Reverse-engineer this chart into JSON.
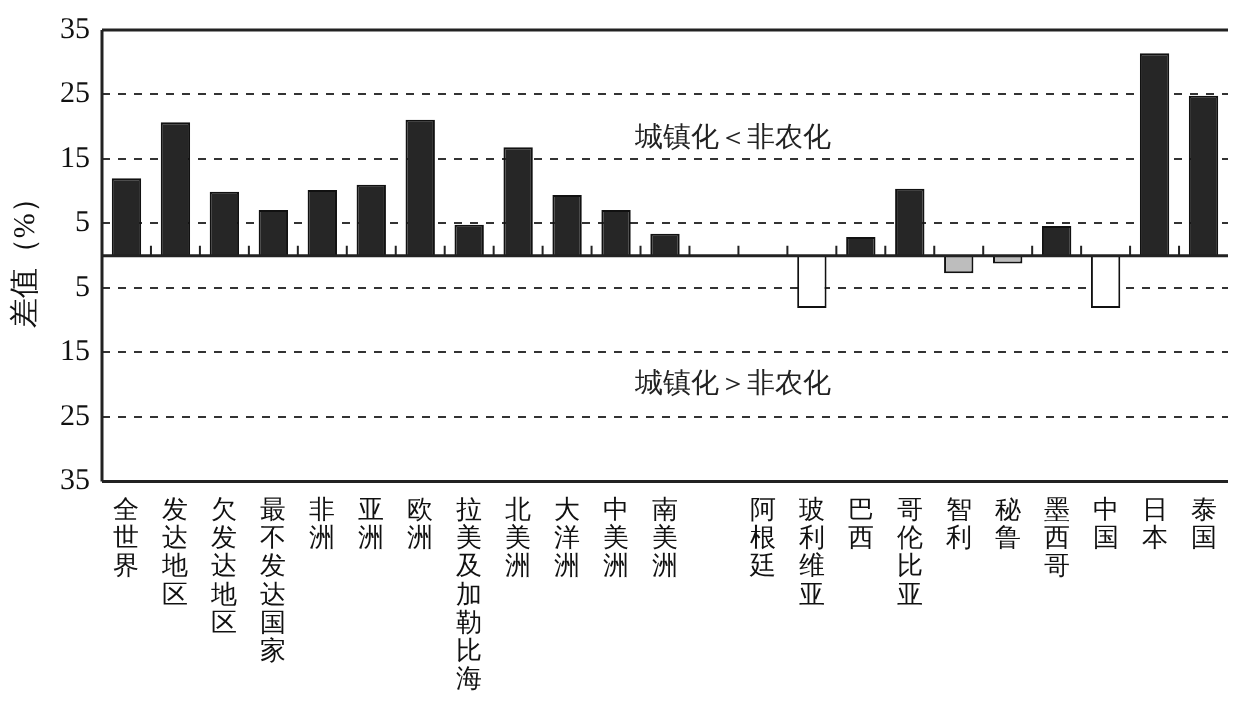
{
  "chart_data": {
    "type": "bar",
    "ylabel": "差值（%）",
    "categories": [
      "全世界",
      "发达地区",
      "欠发达地区",
      "最不发达国家",
      "非洲",
      "亚洲",
      "欧洲",
      "拉美及加勒比海",
      "北美洲",
      "大洋洲",
      "中美洲",
      "南美洲",
      null,
      "阿根廷",
      "玻利维亚",
      "巴西",
      "哥伦比亚",
      "智利",
      "秘鲁",
      "墨西哥",
      "中国",
      "日本",
      "泰国"
    ],
    "values": [
      12,
      20.7,
      9.9,
      7.1,
      10.2,
      11,
      21.1,
      4.8,
      16.8,
      9.4,
      7.1,
      3.4,
      null,
      0,
      -8.1,
      2.9,
      10.4,
      -2.7,
      -1.2,
      4.6,
      -8.1,
      31.4,
      24.8
    ],
    "colors": [
      "#262626",
      "#262626",
      "#262626",
      "#262626",
      "#262626",
      "#262626",
      "#262626",
      "#262626",
      "#262626",
      "#262626",
      "#262626",
      "#262626",
      "#262626",
      "#262626",
      "#ffffff",
      "#262626",
      "#262626",
      "#bdbdbd",
      "#bdbdbd",
      "#262626",
      "#ffffff",
      "#262626",
      "#262626"
    ],
    "ylim": [
      -35,
      35
    ],
    "yticks": [
      35,
      25,
      15,
      5,
      {
        "value": -5,
        "label": "5"
      },
      {
        "value": -15,
        "label": "15"
      },
      {
        "value": -25,
        "label": "25"
      },
      {
        "value": -35,
        "label": "35"
      }
    ],
    "grid": "y",
    "legend": false,
    "annotations": [
      "城镇化＜非农化",
      "城镇化＞非农化"
    ]
  }
}
